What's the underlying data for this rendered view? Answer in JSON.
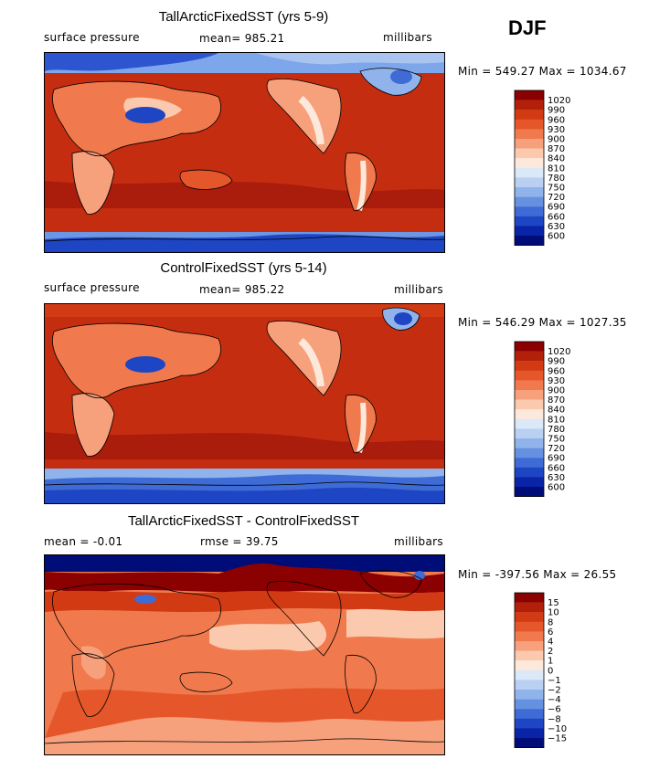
{
  "season": "DJF",
  "panels": [
    {
      "title": "TallArcticFixedSST (yrs 5-9)",
      "variable": "surface pressure",
      "stat": "mean=  985.21",
      "units": "millibars",
      "minmax": "Min = 549.27  Max = 1034.67",
      "palette": "abs"
    },
    {
      "title": "ControlFixedSST (yrs 5-14)",
      "variable": "surface pressure",
      "stat": "mean=  985.22",
      "units": "millibars",
      "minmax": "Min = 546.29  Max = 1027.35",
      "palette": "abs"
    },
    {
      "title": "TallArcticFixedSST - ControlFixedSST",
      "variable": "mean =   -0.01",
      "stat": "rmse =   39.75",
      "units": "millibars",
      "minmax": "Min = -397.56  Max =   26.55",
      "palette": "diff"
    }
  ],
  "chart_data": {
    "type": "heatmap",
    "field": "surface pressure (DJF)",
    "units": "millibars",
    "colorbar_abs": {
      "labels": [
        "1020",
        "990",
        "960",
        "930",
        "900",
        "870",
        "840",
        "810",
        "780",
        "750",
        "720",
        "690",
        "660",
        "630",
        "600"
      ],
      "colors": [
        "#8b0000",
        "#b3200a",
        "#d23a14",
        "#e5572a",
        "#f07a4d",
        "#f7a07c",
        "#fbc9ad",
        "#fde9dc",
        "#dbe8f8",
        "#b9d0f2",
        "#8fb3ea",
        "#6690e0",
        "#3e6bd6",
        "#1e46c4",
        "#0a24a8",
        "#000d78"
      ]
    },
    "colorbar_diff": {
      "labels": [
        "15",
        "10",
        "8",
        "6",
        "4",
        "2",
        "1",
        "0",
        "−1",
        "−2",
        "−4",
        "−6",
        "−8",
        "−10",
        "−15"
      ],
      "colors": [
        "#8b0000",
        "#b3200a",
        "#d23a14",
        "#e5572a",
        "#f07a4d",
        "#f7a07c",
        "#fbc9ad",
        "#fde9dc",
        "#dbe8f8",
        "#b9d0f2",
        "#8fb3ea",
        "#6690e0",
        "#3e6bd6",
        "#1e46c4",
        "#0a24a8",
        "#000d78"
      ]
    }
  }
}
